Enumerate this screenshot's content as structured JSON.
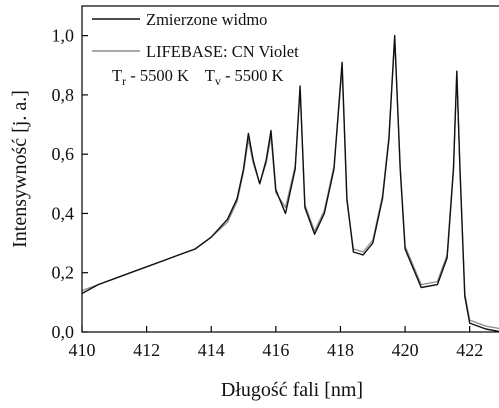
{
  "chart_data": {
    "type": "line",
    "xlabel": "Długość fali [nm]",
    "ylabel": "Intensywność [j. a.]",
    "xlim": [
      410,
      423
    ],
    "ylim": [
      0,
      1.1
    ],
    "x_ticks": [
      "410",
      "412",
      "414",
      "416",
      "418",
      "420",
      "422"
    ],
    "y_ticks": [
      "0,0",
      "0,2",
      "0,4",
      "0,6",
      "0,8",
      "1,0"
    ],
    "grid": false,
    "legend_position": "top-left",
    "legend": {
      "measured": "Zmierzone widmo",
      "simulated": "LIFEBASE: CN Violet",
      "tr_label": "T",
      "tr_sub": "r",
      "tr_value": " - 5500 K",
      "tv_label": "T",
      "tv_sub": "v",
      "tv_value": " - 5500 K"
    },
    "colors": {
      "measured": "#111111",
      "simulated": "#8c8c8c",
      "axis": "#000000"
    },
    "series": [
      {
        "name": "Zmierzone widmo",
        "x": [
          410.0,
          410.5,
          411.0,
          411.5,
          412.0,
          412.5,
          413.0,
          413.5,
          414.0,
          414.5,
          414.8,
          415.0,
          415.15,
          415.3,
          415.5,
          415.7,
          415.85,
          416.0,
          416.3,
          416.6,
          416.75,
          416.9,
          417.2,
          417.5,
          417.8,
          418.05,
          418.2,
          418.4,
          418.7,
          419.0,
          419.3,
          419.5,
          419.68,
          419.85,
          420.0,
          420.5,
          421.0,
          421.3,
          421.5,
          421.6,
          421.7,
          421.85,
          422.0,
          422.5,
          423.0
        ],
        "y": [
          0.13,
          0.16,
          0.18,
          0.2,
          0.22,
          0.24,
          0.26,
          0.28,
          0.32,
          0.38,
          0.45,
          0.55,
          0.67,
          0.58,
          0.5,
          0.58,
          0.68,
          0.48,
          0.4,
          0.55,
          0.83,
          0.42,
          0.33,
          0.4,
          0.55,
          0.91,
          0.45,
          0.27,
          0.26,
          0.3,
          0.45,
          0.65,
          1.0,
          0.55,
          0.28,
          0.15,
          0.16,
          0.25,
          0.55,
          0.88,
          0.55,
          0.12,
          0.03,
          0.01,
          0.0
        ]
      },
      {
        "name": "LIFEBASE: CN Violet",
        "x": [
          410.0,
          410.5,
          411.0,
          411.5,
          412.0,
          412.5,
          413.0,
          413.5,
          414.0,
          414.5,
          414.8,
          415.0,
          415.15,
          415.3,
          415.5,
          415.7,
          415.85,
          416.0,
          416.3,
          416.6,
          416.75,
          416.9,
          417.2,
          417.5,
          417.8,
          418.05,
          418.2,
          418.4,
          418.7,
          419.0,
          419.3,
          419.5,
          419.68,
          419.85,
          420.0,
          420.5,
          421.0,
          421.3,
          421.5,
          421.6,
          421.7,
          421.85,
          422.0,
          422.5,
          423.0
        ],
        "y": [
          0.14,
          0.16,
          0.18,
          0.2,
          0.22,
          0.24,
          0.26,
          0.28,
          0.32,
          0.37,
          0.44,
          0.54,
          0.65,
          0.57,
          0.5,
          0.57,
          0.66,
          0.47,
          0.42,
          0.56,
          0.82,
          0.43,
          0.34,
          0.41,
          0.56,
          0.89,
          0.44,
          0.28,
          0.27,
          0.31,
          0.46,
          0.66,
          0.99,
          0.56,
          0.29,
          0.16,
          0.17,
          0.26,
          0.56,
          0.87,
          0.54,
          0.13,
          0.04,
          0.02,
          0.01
        ]
      }
    ]
  }
}
